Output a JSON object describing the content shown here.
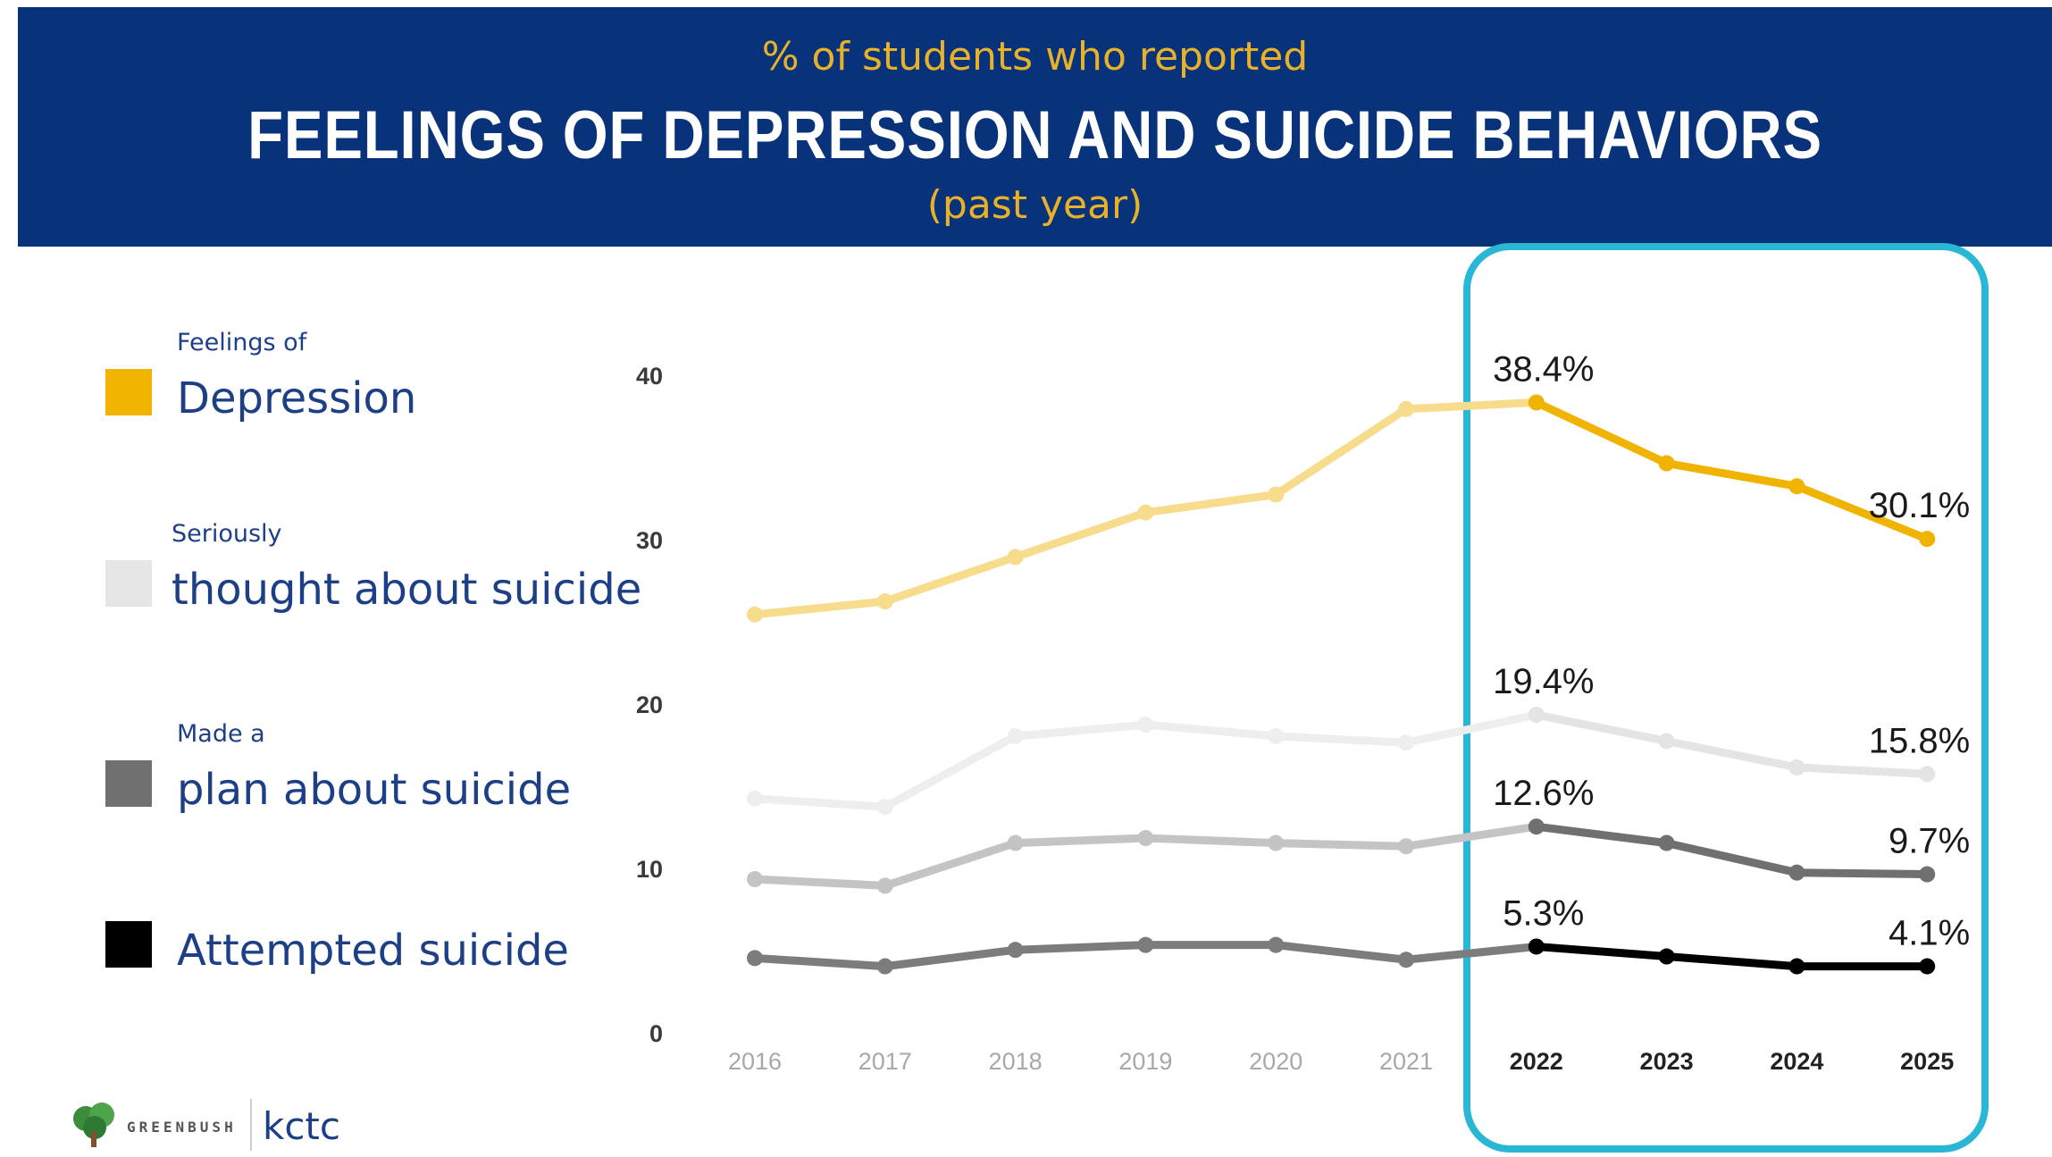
{
  "header": {
    "subtitle_top": "% of students who reported",
    "title": "FEELINGS OF DEPRESSION AND SUICIDE BEHAVIORS",
    "subtitle_bottom": "(past year)"
  },
  "legend": [
    {
      "small": "Feelings of",
      "big": "Depression",
      "color": "#f0b400"
    },
    {
      "small": "Seriously",
      "big": "thought about suicide",
      "color": "#e6e6e6"
    },
    {
      "small": "Made a",
      "big": "plan about suicide",
      "color": "#707070"
    },
    {
      "small": "",
      "big": "Attempted suicide",
      "color": "#000000"
    }
  ],
  "logos": {
    "greenbush": "GREENBUSH",
    "kctc": "kctc"
  },
  "chart_data": {
    "type": "line",
    "x": [
      "2016",
      "2017",
      "2018",
      "2019",
      "2020",
      "2021",
      "2022",
      "2023",
      "2024",
      "2025"
    ],
    "y_ticks": [
      0,
      10,
      20,
      30,
      40
    ],
    "ylim": [
      0,
      40
    ],
    "grid": false,
    "highlight_from_index": 6,
    "series": [
      {
        "name": "Feelings of Depression",
        "color": "#f0b400",
        "faded_color": "#f8dc8d",
        "values": [
          25.5,
          26.3,
          29.0,
          31.7,
          32.8,
          38.0,
          38.4,
          34.7,
          33.3,
          30.1
        ],
        "labels": {
          "6": "38.4%",
          "9": "30.1%"
        }
      },
      {
        "name": "Seriously thought about suicide",
        "color": "#e4e4e4",
        "faded_color": "#eeeeee",
        "values": [
          14.3,
          13.8,
          18.1,
          18.8,
          18.1,
          17.7,
          19.4,
          17.8,
          16.2,
          15.8
        ],
        "labels": {
          "6": "19.4%",
          "9": "15.8%"
        }
      },
      {
        "name": "Made a plan about suicide",
        "color": "#707070",
        "faded_color": "#c4c4c4",
        "values": [
          9.4,
          9.0,
          11.6,
          11.9,
          11.6,
          11.4,
          12.6,
          11.6,
          9.8,
          9.7
        ],
        "labels": {
          "6": "12.6%",
          "9": "9.7%"
        }
      },
      {
        "name": "Attempted suicide",
        "color": "#000000",
        "faded_color": "#7c7c7c",
        "values": [
          4.6,
          4.1,
          5.1,
          5.4,
          5.4,
          4.5,
          5.3,
          4.7,
          4.1,
          4.1
        ],
        "labels": {
          "6": "5.3%",
          "9": "4.1%"
        }
      }
    ]
  }
}
